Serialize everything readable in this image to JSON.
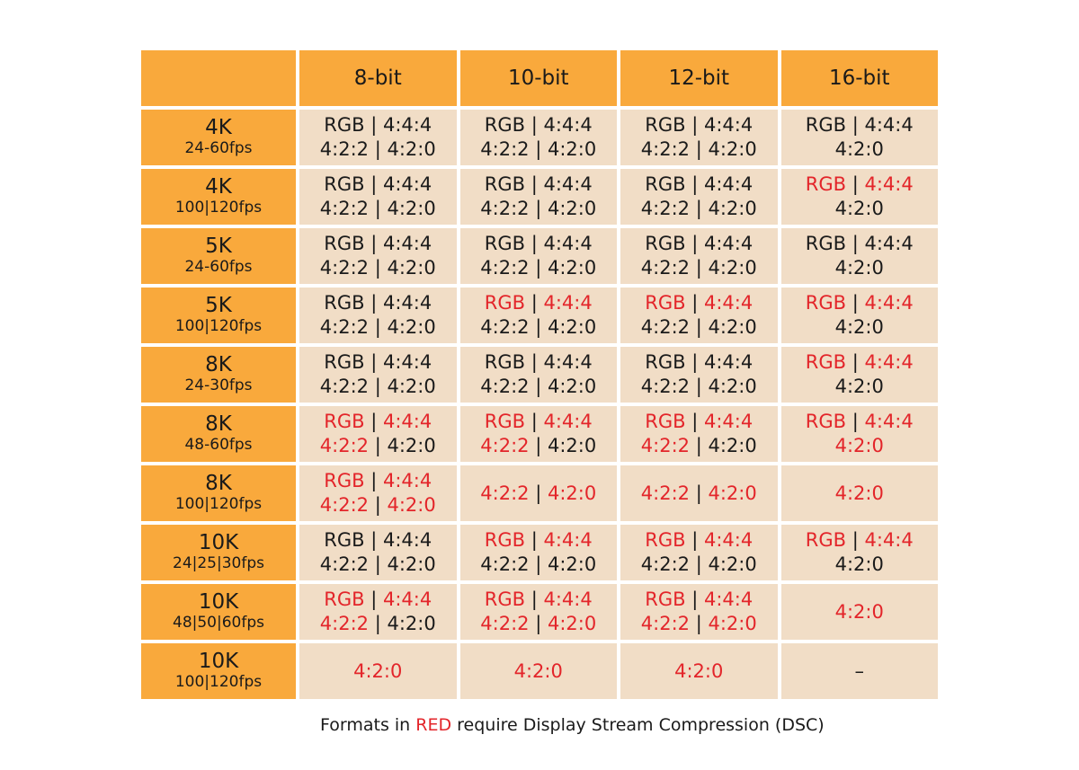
{
  "columns": [
    "8-bit",
    "10-bit",
    "12-bit",
    "16-bit"
  ],
  "colors": {
    "header": "#f9a93c",
    "cell": "#f1ddc6",
    "dsc": "#e3252a",
    "normal": "#1a1a1a"
  },
  "rows": [
    {
      "res": "4K",
      "fps": "24-60fps",
      "cells": [
        [
          [
            [
              "RGB",
              "n"
            ],
            [
              " | ",
              "n"
            ],
            [
              "4:4:4",
              "n"
            ]
          ],
          [
            [
              "4:2:2",
              "n"
            ],
            [
              " | ",
              "n"
            ],
            [
              "4:2:0",
              "n"
            ]
          ]
        ],
        [
          [
            [
              "RGB",
              "n"
            ],
            [
              " | ",
              "n"
            ],
            [
              "4:4:4",
              "n"
            ]
          ],
          [
            [
              "4:2:2",
              "n"
            ],
            [
              " | ",
              "n"
            ],
            [
              "4:2:0",
              "n"
            ]
          ]
        ],
        [
          [
            [
              "RGB",
              "n"
            ],
            [
              " | ",
              "n"
            ],
            [
              "4:4:4",
              "n"
            ]
          ],
          [
            [
              "4:2:2",
              "n"
            ],
            [
              " | ",
              "n"
            ],
            [
              "4:2:0",
              "n"
            ]
          ]
        ],
        [
          [
            [
              "RGB",
              "n"
            ],
            [
              " | ",
              "n"
            ],
            [
              "4:4:4",
              "n"
            ]
          ],
          [
            [
              "4:2:0",
              "n"
            ]
          ]
        ]
      ]
    },
    {
      "res": "4K",
      "fps": "100|120fps",
      "cells": [
        [
          [
            [
              "RGB",
              "n"
            ],
            [
              " | ",
              "n"
            ],
            [
              "4:4:4",
              "n"
            ]
          ],
          [
            [
              "4:2:2",
              "n"
            ],
            [
              " | ",
              "n"
            ],
            [
              "4:2:0",
              "n"
            ]
          ]
        ],
        [
          [
            [
              "RGB",
              "n"
            ],
            [
              " | ",
              "n"
            ],
            [
              "4:4:4",
              "n"
            ]
          ],
          [
            [
              "4:2:2",
              "n"
            ],
            [
              " | ",
              "n"
            ],
            [
              "4:2:0",
              "n"
            ]
          ]
        ],
        [
          [
            [
              "RGB",
              "n"
            ],
            [
              " | ",
              "n"
            ],
            [
              "4:4:4",
              "n"
            ]
          ],
          [
            [
              "4:2:2",
              "n"
            ],
            [
              " | ",
              "n"
            ],
            [
              "4:2:0",
              "n"
            ]
          ]
        ],
        [
          [
            [
              "RGB",
              "r"
            ],
            [
              " | ",
              "n"
            ],
            [
              "4:4:4",
              "r"
            ]
          ],
          [
            [
              "4:2:0",
              "n"
            ]
          ]
        ]
      ]
    },
    {
      "res": "5K",
      "fps": "24-60fps",
      "cells": [
        [
          [
            [
              "RGB",
              "n"
            ],
            [
              " | ",
              "n"
            ],
            [
              "4:4:4",
              "n"
            ]
          ],
          [
            [
              "4:2:2",
              "n"
            ],
            [
              " | ",
              "n"
            ],
            [
              "4:2:0",
              "n"
            ]
          ]
        ],
        [
          [
            [
              "RGB",
              "n"
            ],
            [
              " | ",
              "n"
            ],
            [
              "4:4:4",
              "n"
            ]
          ],
          [
            [
              "4:2:2",
              "n"
            ],
            [
              " | ",
              "n"
            ],
            [
              "4:2:0",
              "n"
            ]
          ]
        ],
        [
          [
            [
              "RGB",
              "n"
            ],
            [
              " | ",
              "n"
            ],
            [
              "4:4:4",
              "n"
            ]
          ],
          [
            [
              "4:2:2",
              "n"
            ],
            [
              " | ",
              "n"
            ],
            [
              "4:2:0",
              "n"
            ]
          ]
        ],
        [
          [
            [
              "RGB",
              "n"
            ],
            [
              " | ",
              "n"
            ],
            [
              "4:4:4",
              "n"
            ]
          ],
          [
            [
              "4:2:0",
              "n"
            ]
          ]
        ]
      ]
    },
    {
      "res": "5K",
      "fps": "100|120fps",
      "cells": [
        [
          [
            [
              "RGB",
              "n"
            ],
            [
              " | ",
              "n"
            ],
            [
              "4:4:4",
              "n"
            ]
          ],
          [
            [
              "4:2:2",
              "n"
            ],
            [
              " | ",
              "n"
            ],
            [
              "4:2:0",
              "n"
            ]
          ]
        ],
        [
          [
            [
              "RGB",
              "r"
            ],
            [
              " | ",
              "n"
            ],
            [
              "4:4:4",
              "r"
            ]
          ],
          [
            [
              "4:2:2",
              "n"
            ],
            [
              " | ",
              "n"
            ],
            [
              "4:2:0",
              "n"
            ]
          ]
        ],
        [
          [
            [
              "RGB",
              "r"
            ],
            [
              " | ",
              "n"
            ],
            [
              "4:4:4",
              "r"
            ]
          ],
          [
            [
              "4:2:2",
              "n"
            ],
            [
              " | ",
              "n"
            ],
            [
              "4:2:0",
              "n"
            ]
          ]
        ],
        [
          [
            [
              "RGB",
              "r"
            ],
            [
              " | ",
              "n"
            ],
            [
              "4:4:4",
              "r"
            ]
          ],
          [
            [
              "4:2:0",
              "n"
            ]
          ]
        ]
      ]
    },
    {
      "res": "8K",
      "fps": "24-30fps",
      "cells": [
        [
          [
            [
              "RGB",
              "n"
            ],
            [
              " | ",
              "n"
            ],
            [
              "4:4:4",
              "n"
            ]
          ],
          [
            [
              "4:2:2",
              "n"
            ],
            [
              " | ",
              "n"
            ],
            [
              "4:2:0",
              "n"
            ]
          ]
        ],
        [
          [
            [
              "RGB",
              "n"
            ],
            [
              " | ",
              "n"
            ],
            [
              "4:4:4",
              "n"
            ]
          ],
          [
            [
              "4:2:2",
              "n"
            ],
            [
              " | ",
              "n"
            ],
            [
              "4:2:0",
              "n"
            ]
          ]
        ],
        [
          [
            [
              "RGB",
              "n"
            ],
            [
              " | ",
              "n"
            ],
            [
              "4:4:4",
              "n"
            ]
          ],
          [
            [
              "4:2:2",
              "n"
            ],
            [
              " | ",
              "n"
            ],
            [
              "4:2:0",
              "n"
            ]
          ]
        ],
        [
          [
            [
              "RGB",
              "r"
            ],
            [
              " | ",
              "n"
            ],
            [
              "4:4:4",
              "r"
            ]
          ],
          [
            [
              "4:2:0",
              "n"
            ]
          ]
        ]
      ]
    },
    {
      "res": "8K",
      "fps": "48-60fps",
      "cells": [
        [
          [
            [
              "RGB",
              "r"
            ],
            [
              " | ",
              "n"
            ],
            [
              "4:4:4",
              "r"
            ]
          ],
          [
            [
              "4:2:2",
              "r"
            ],
            [
              " | ",
              "n"
            ],
            [
              "4:2:0",
              "n"
            ]
          ]
        ],
        [
          [
            [
              "RGB",
              "r"
            ],
            [
              " | ",
              "n"
            ],
            [
              "4:4:4",
              "r"
            ]
          ],
          [
            [
              "4:2:2",
              "r"
            ],
            [
              " | ",
              "n"
            ],
            [
              "4:2:0",
              "n"
            ]
          ]
        ],
        [
          [
            [
              "RGB",
              "r"
            ],
            [
              " | ",
              "n"
            ],
            [
              "4:4:4",
              "r"
            ]
          ],
          [
            [
              "4:2:2",
              "r"
            ],
            [
              " | ",
              "n"
            ],
            [
              "4:2:0",
              "n"
            ]
          ]
        ],
        [
          [
            [
              "RGB",
              "r"
            ],
            [
              " | ",
              "n"
            ],
            [
              "4:4:4",
              "r"
            ]
          ],
          [
            [
              "4:2:0",
              "r"
            ]
          ]
        ]
      ]
    },
    {
      "res": "8K",
      "fps": "100|120fps",
      "cells": [
        [
          [
            [
              "RGB",
              "r"
            ],
            [
              " | ",
              "n"
            ],
            [
              "4:4:4",
              "r"
            ]
          ],
          [
            [
              "4:2:2",
              "r"
            ],
            [
              " | ",
              "n"
            ],
            [
              "4:2:0",
              "r"
            ]
          ]
        ],
        [
          [
            [
              "4:2:2",
              "r"
            ],
            [
              " | ",
              "n"
            ],
            [
              "4:2:0",
              "r"
            ]
          ]
        ],
        [
          [
            [
              "4:2:2",
              "r"
            ],
            [
              " | ",
              "n"
            ],
            [
              "4:2:0",
              "r"
            ]
          ]
        ],
        [
          [
            [
              "4:2:0",
              "r"
            ]
          ]
        ]
      ]
    },
    {
      "res": "10K",
      "fps": "24|25|30fps",
      "cells": [
        [
          [
            [
              "RGB",
              "n"
            ],
            [
              " | ",
              "n"
            ],
            [
              "4:4:4",
              "n"
            ]
          ],
          [
            [
              "4:2:2",
              "n"
            ],
            [
              " | ",
              "n"
            ],
            [
              "4:2:0",
              "n"
            ]
          ]
        ],
        [
          [
            [
              "RGB",
              "r"
            ],
            [
              " | ",
              "n"
            ],
            [
              "4:4:4",
              "r"
            ]
          ],
          [
            [
              "4:2:2",
              "n"
            ],
            [
              " | ",
              "n"
            ],
            [
              "4:2:0",
              "n"
            ]
          ]
        ],
        [
          [
            [
              "RGB",
              "r"
            ],
            [
              " | ",
              "n"
            ],
            [
              "4:4:4",
              "r"
            ]
          ],
          [
            [
              "4:2:2",
              "n"
            ],
            [
              " | ",
              "n"
            ],
            [
              "4:2:0",
              "n"
            ]
          ]
        ],
        [
          [
            [
              "RGB",
              "r"
            ],
            [
              " | ",
              "n"
            ],
            [
              "4:4:4",
              "r"
            ]
          ],
          [
            [
              "4:2:0",
              "n"
            ]
          ]
        ]
      ]
    },
    {
      "res": "10K",
      "fps": "48|50|60fps",
      "cells": [
        [
          [
            [
              "RGB",
              "r"
            ],
            [
              " | ",
              "n"
            ],
            [
              "4:4:4",
              "r"
            ]
          ],
          [
            [
              "4:2:2",
              "r"
            ],
            [
              " | ",
              "n"
            ],
            [
              "4:2:0",
              "n"
            ]
          ]
        ],
        [
          [
            [
              "RGB",
              "r"
            ],
            [
              " | ",
              "n"
            ],
            [
              "4:4:4",
              "r"
            ]
          ],
          [
            [
              "4:2:2",
              "r"
            ],
            [
              " | ",
              "n"
            ],
            [
              "4:2:0",
              "r"
            ]
          ]
        ],
        [
          [
            [
              "RGB",
              "r"
            ],
            [
              " | ",
              "n"
            ],
            [
              "4:4:4",
              "r"
            ]
          ],
          [
            [
              "4:2:2",
              "r"
            ],
            [
              " | ",
              "n"
            ],
            [
              "4:2:0",
              "r"
            ]
          ]
        ],
        [
          [
            [
              "4:2:0",
              "r"
            ]
          ]
        ]
      ]
    },
    {
      "res": "10K",
      "fps": "100|120fps",
      "cells": [
        [
          [
            [
              "4:2:0",
              "r"
            ]
          ]
        ],
        [
          [
            [
              "4:2:0",
              "r"
            ]
          ]
        ],
        [
          [
            [
              "4:2:0",
              "r"
            ]
          ]
        ],
        [
          [
            [
              "–",
              "n"
            ]
          ]
        ]
      ]
    }
  ],
  "legend": {
    "before": "Formats in ",
    "highlight": "RED",
    "after": " require Display Stream Compression (DSC)"
  }
}
